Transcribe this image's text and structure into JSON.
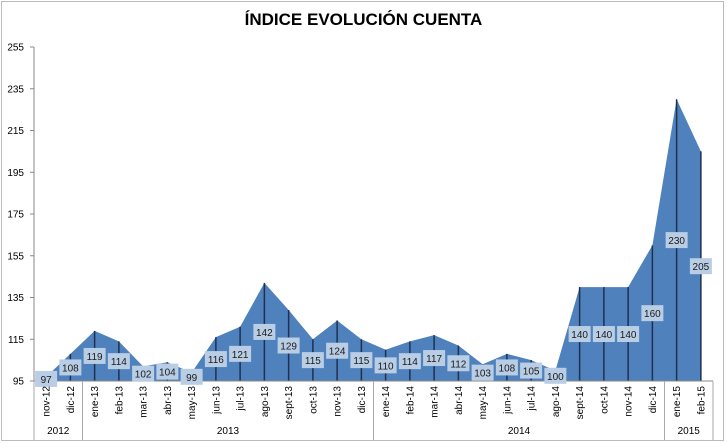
{
  "chart_data": {
    "type": "area",
    "title": "ÍNDICE EVOLUCIÓN CUENTA",
    "xlabel": "",
    "ylabel": "",
    "ylim": [
      95,
      255
    ],
    "yticks": [
      95,
      115,
      135,
      155,
      175,
      195,
      215,
      235,
      255
    ],
    "grid": false,
    "categories": [
      "nov-12",
      "dic-12",
      "ene-13",
      "feb-13",
      "mar-13",
      "abr-13",
      "may-13",
      "jun-13",
      "jul-13",
      "ago-13",
      "sept-13",
      "oct-13",
      "nov-13",
      "dic-13",
      "ene-14",
      "feb-14",
      "mar-14",
      "abr-14",
      "may-14",
      "jun-14",
      "jul-14",
      "ago-14",
      "sept-14",
      "oct-14",
      "nov-14",
      "dic-14",
      "ene-15",
      "feb-15"
    ],
    "values": [
      97,
      108,
      119,
      114,
      102,
      104,
      99,
      116,
      121,
      142,
      129,
      115,
      124,
      115,
      110,
      114,
      117,
      112,
      103,
      108,
      105,
      100,
      140,
      140,
      140,
      160,
      230,
      205
    ],
    "year_groups": [
      {
        "label": "2012",
        "count": 2
      },
      {
        "label": "2013",
        "count": 12
      },
      {
        "label": "2014",
        "count": 12
      },
      {
        "label": "2015",
        "count": 2
      }
    ],
    "colors": {
      "area": "#4f81bd",
      "drop_line": "#1f3050",
      "label_box": "#b9cde5",
      "text": "#1a1a1a"
    }
  }
}
